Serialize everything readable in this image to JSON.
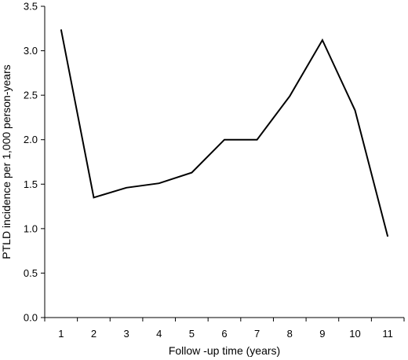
{
  "chart_data": {
    "type": "line",
    "title": "",
    "xlabel": "Follow -up time (years)",
    "ylabel": "PTLD incidence per 1,000 person-years",
    "categories": [
      "1",
      "2",
      "3",
      "4",
      "5",
      "6",
      "7",
      "8",
      "9",
      "10",
      "11"
    ],
    "x": [
      1,
      2,
      3,
      4,
      5,
      6,
      7,
      8,
      9,
      10,
      11
    ],
    "y_ticks": [
      "0.0",
      "0.5",
      "1.0",
      "1.5",
      "2.0",
      "2.5",
      "3.0",
      "3.5"
    ],
    "ylim": [
      0,
      3.5
    ],
    "grid": false,
    "legend": "none",
    "series": [
      {
        "color": "#000000",
        "values": [
          3.24,
          1.35,
          1.46,
          1.51,
          1.63,
          2.0,
          2.0,
          2.49,
          3.12,
          2.33,
          0.91
        ]
      }
    ]
  }
}
